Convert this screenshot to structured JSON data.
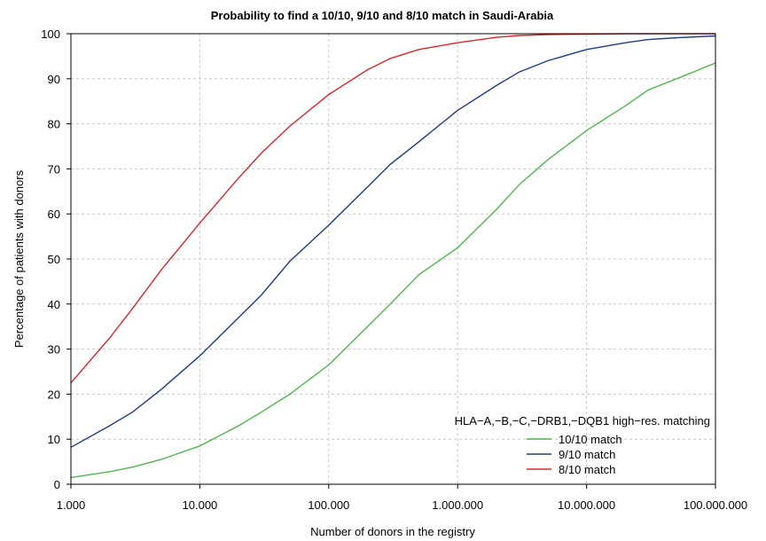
{
  "chart_data": {
    "type": "line",
    "title": "Probability to find a 10/10, 9/10 and 8/10 match in Saudi-Arabia",
    "xlabel": "Number of donors in the registry",
    "ylabel": "Percentage of patients with donors",
    "x_scale": "log",
    "xlim": [
      1000,
      100000000
    ],
    "ylim": [
      0,
      100
    ],
    "grid": true,
    "x_ticks": [
      {
        "value": 1000,
        "label": "1.000"
      },
      {
        "value": 10000,
        "label": "10.000"
      },
      {
        "value": 100000,
        "label": "100.000"
      },
      {
        "value": 1000000,
        "label": "1.000.000"
      },
      {
        "value": 10000000,
        "label": "10.000.000"
      },
      {
        "value": 100000000,
        "label": "100.000.000"
      }
    ],
    "y_ticks": [
      {
        "value": 0,
        "label": "0"
      },
      {
        "value": 10,
        "label": "10"
      },
      {
        "value": 20,
        "label": "20"
      },
      {
        "value": 30,
        "label": "30"
      },
      {
        "value": 40,
        "label": "40"
      },
      {
        "value": 50,
        "label": "50"
      },
      {
        "value": 60,
        "label": "60"
      },
      {
        "value": 70,
        "label": "70"
      },
      {
        "value": 80,
        "label": "80"
      },
      {
        "value": 90,
        "label": "90"
      },
      {
        "value": 100,
        "label": "100"
      }
    ],
    "legend": {
      "title": "HLA−A,−B,−C,−DRB1,−DQB1 high−res. matching",
      "placement": "bottom-right"
    },
    "series": [
      {
        "name": "10/10 match",
        "color": "#4cb84c",
        "x": [
          1000,
          2000,
          3000,
          5000,
          10000,
          20000,
          30000,
          50000,
          100000,
          200000,
          300000,
          500000,
          1000000,
          2000000,
          3000000,
          5000000,
          10000000,
          20000000,
          30000000,
          50000000,
          100000000
        ],
        "y": [
          1.5,
          2.8,
          3.8,
          5.5,
          8.5,
          13,
          16,
          20,
          26.5,
          35,
          40,
          46.5,
          52.5,
          61,
          66.5,
          72,
          78.5,
          84,
          87.5,
          90,
          93.5
        ]
      },
      {
        "name": "9/10 match",
        "color": "#1f3a8a",
        "x": [
          1000,
          2000,
          3000,
          5000,
          10000,
          20000,
          30000,
          50000,
          100000,
          200000,
          300000,
          500000,
          1000000,
          2000000,
          3000000,
          5000000,
          10000000,
          20000000,
          30000000,
          50000000,
          100000000
        ],
        "y": [
          8.2,
          13,
          16,
          21,
          28.5,
          37,
          42,
          49.5,
          57.5,
          66,
          71,
          76,
          83,
          88.5,
          91.5,
          94,
          96.5,
          98,
          98.7,
          99.1,
          99.5
        ]
      },
      {
        "name": "8/10 match",
        "color": "#e0242a",
        "x": [
          1000,
          2000,
          3000,
          5000,
          10000,
          20000,
          30000,
          50000,
          100000,
          200000,
          300000,
          500000,
          1000000,
          2000000,
          3000000,
          5000000,
          10000000,
          20000000,
          30000000,
          50000000,
          100000000
        ],
        "y": [
          22.5,
          32.5,
          39,
          47.5,
          58,
          68,
          73.5,
          79.5,
          86.5,
          92,
          94.5,
          96.5,
          98,
          99.2,
          99.6,
          99.8,
          99.9,
          100,
          100,
          100,
          100
        ]
      }
    ]
  }
}
